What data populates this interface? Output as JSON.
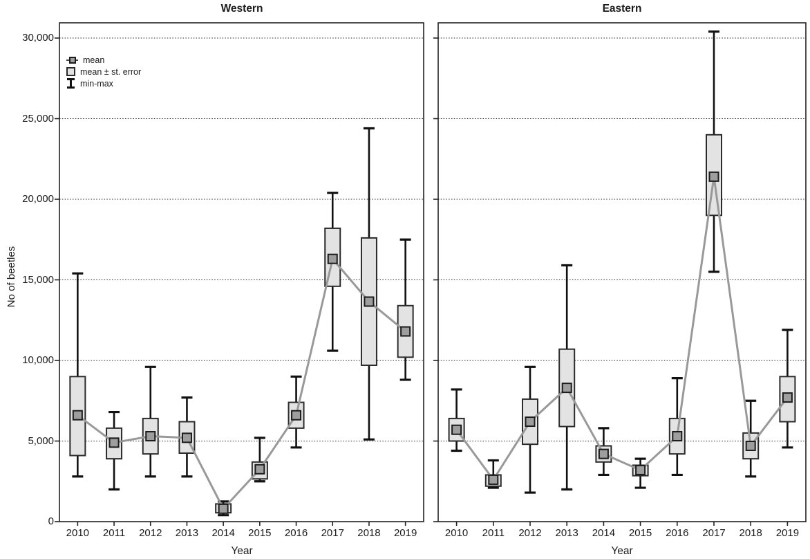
{
  "chart_data": [
    {
      "type": "boxplot",
      "title": "Western",
      "xlabel": "Year",
      "ylabel": "No of beetles",
      "ylim": [
        0,
        31000
      ],
      "yticks": [
        0,
        5000,
        10000,
        15000,
        20000,
        25000,
        30000
      ],
      "ytick_labels": [
        "0",
        "5,000",
        "10,000",
        "15,000",
        "20,000",
        "25,000",
        "30,000"
      ],
      "ytick_labels_visible": true,
      "grid": "dotted-horizontal",
      "legend": [
        "mean",
        "mean ± st. error",
        "min-max"
      ],
      "legend_position": "top-left",
      "categories": [
        "2010",
        "2011",
        "2012",
        "2013",
        "2014",
        "2015",
        "2016",
        "2017",
        "2018",
        "2019"
      ],
      "series": {
        "mean": [
          6600,
          4900,
          5300,
          5200,
          800,
          3250,
          6600,
          16300,
          13650,
          11800
        ],
        "se_low": [
          4100,
          3900,
          4200,
          4250,
          550,
          2650,
          5800,
          14600,
          9700,
          10200
        ],
        "se_high": [
          9000,
          5800,
          6400,
          6200,
          1100,
          3700,
          7400,
          18200,
          17600,
          13400
        ],
        "min": [
          2800,
          2000,
          2800,
          2800,
          400,
          2500,
          4600,
          10600,
          5100,
          8800
        ],
        "max": [
          15400,
          6800,
          9600,
          7700,
          1250,
          5200,
          9000,
          20400,
          24400,
          17500
        ]
      }
    },
    {
      "type": "boxplot",
      "title": "Eastern",
      "xlabel": "Year",
      "ylabel": "No of beetles",
      "ylim": [
        0,
        31000
      ],
      "yticks": [
        0,
        5000,
        10000,
        15000,
        20000,
        25000,
        30000
      ],
      "ytick_labels": [
        "0",
        "5,000",
        "10,000",
        "15,000",
        "20,000",
        "25,000",
        "30,000"
      ],
      "ytick_labels_visible": false,
      "grid": "dotted-horizontal",
      "categories": [
        "2010",
        "2011",
        "2012",
        "2013",
        "2014",
        "2015",
        "2016",
        "2017",
        "2018",
        "2019"
      ],
      "series": {
        "mean": [
          5700,
          2600,
          6200,
          8300,
          4200,
          3200,
          5300,
          21400,
          4700,
          7700
        ],
        "se_low": [
          5000,
          2200,
          4800,
          5900,
          3700,
          2850,
          4200,
          19000,
          3900,
          6200
        ],
        "se_high": [
          6400,
          2900,
          7600,
          10700,
          4700,
          3500,
          6400,
          24000,
          5500,
          9000
        ],
        "min": [
          4400,
          2100,
          1800,
          2000,
          2900,
          2100,
          2900,
          15500,
          2800,
          4600
        ],
        "max": [
          8200,
          3800,
          9600,
          15900,
          5800,
          3900,
          8900,
          30400,
          7500,
          11900
        ]
      }
    }
  ],
  "style": {
    "box_fill": "#e3e3e3",
    "box_stroke": "#2b2b2b",
    "mean_fill": "#9e9e9e",
    "mean_stroke": "#1c1c1c",
    "whisker_color": "#111111",
    "mean_line_color": "#999999",
    "grid_color": "#222222",
    "frame_color": "#222222"
  }
}
